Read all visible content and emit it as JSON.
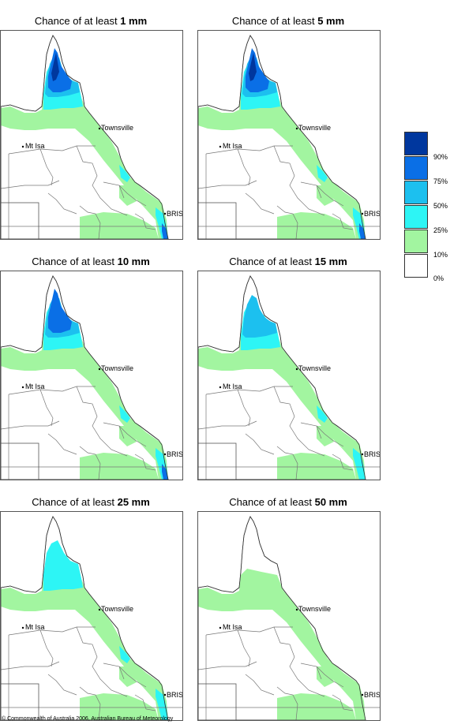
{
  "panels": [
    {
      "prefix": "Chance of at least ",
      "amount": "1 mm",
      "level": 6
    },
    {
      "prefix": "Chance of at least ",
      "amount": "5 mm",
      "level": 5
    },
    {
      "prefix": "Chance of at least ",
      "amount": "10 mm",
      "level": 4
    },
    {
      "prefix": "Chance of at least ",
      "amount": "15 mm",
      "level": 3
    },
    {
      "prefix": "Chance of at least ",
      "amount": "25 mm",
      "level": 2
    },
    {
      "prefix": "Chance of at least ",
      "amount": "50 mm",
      "level": 1
    }
  ],
  "places": {
    "townsville": "Townsville",
    "mt_isa": "Mt Isa",
    "brisbane": "BRIS"
  },
  "legend": {
    "colors": [
      "#00379e",
      "#0a6fe6",
      "#1cc0ef",
      "#2df5f5",
      "#a2f5a0",
      "#ffffff"
    ],
    "ticks": [
      "90%",
      "75%",
      "50%",
      "25%",
      "10%",
      "0%"
    ]
  },
  "copyright": "© Commonwealth of Australia 2006, Australian Bureau of Meteorology"
}
